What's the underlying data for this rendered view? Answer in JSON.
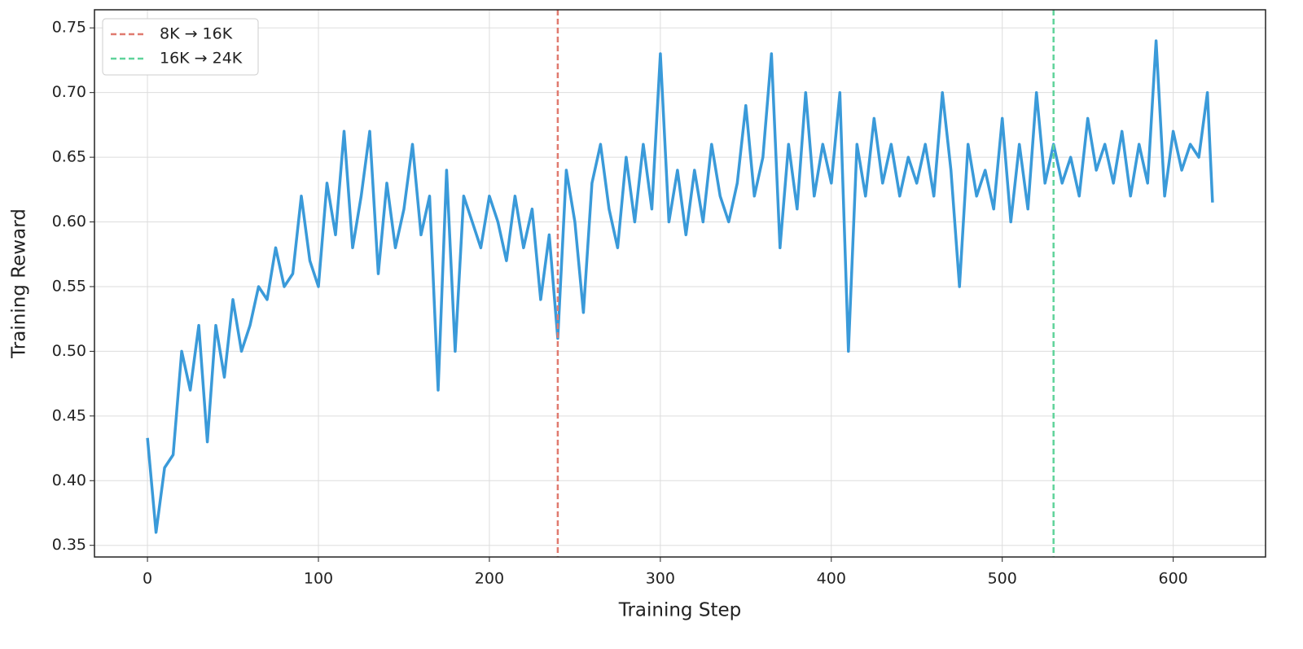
{
  "chart_data": {
    "type": "line",
    "xlabel": "Training Step",
    "ylabel": "Training Reward",
    "color": "#3a9ad9",
    "x": [
      0,
      5,
      10,
      15,
      20,
      25,
      30,
      35,
      40,
      45,
      50,
      55,
      60,
      65,
      70,
      75,
      80,
      85,
      90,
      95,
      100,
      105,
      110,
      115,
      120,
      125,
      130,
      135,
      140,
      145,
      150,
      155,
      160,
      165,
      170,
      175,
      180,
      185,
      190,
      195,
      200,
      205,
      210,
      215,
      220,
      225,
      230,
      235,
      240,
      245,
      250,
      255,
      260,
      265,
      270,
      275,
      280,
      285,
      290,
      295,
      300,
      305,
      310,
      315,
      320,
      325,
      330,
      335,
      340,
      345,
      350,
      355,
      360,
      365,
      370,
      375,
      380,
      385,
      390,
      395,
      400,
      405,
      410,
      415,
      420,
      425,
      430,
      435,
      440,
      445,
      450,
      455,
      460,
      465,
      470,
      475,
      480,
      485,
      490,
      495,
      500,
      505,
      510,
      515,
      520,
      525,
      530,
      535,
      540,
      545,
      550,
      555,
      560,
      565,
      570,
      575,
      580,
      585,
      590,
      595,
      600,
      605,
      610,
      615,
      620,
      623
    ],
    "values": [
      0.433,
      0.36,
      0.41,
      0.42,
      0.5,
      0.47,
      0.52,
      0.43,
      0.52,
      0.48,
      0.54,
      0.5,
      0.52,
      0.55,
      0.54,
      0.58,
      0.55,
      0.56,
      0.62,
      0.57,
      0.55,
      0.63,
      0.59,
      0.67,
      0.58,
      0.62,
      0.67,
      0.56,
      0.63,
      0.58,
      0.61,
      0.66,
      0.59,
      0.62,
      0.47,
      0.64,
      0.5,
      0.62,
      0.6,
      0.58,
      0.62,
      0.6,
      0.57,
      0.62,
      0.58,
      0.61,
      0.54,
      0.59,
      0.51,
      0.64,
      0.6,
      0.53,
      0.63,
      0.66,
      0.61,
      0.58,
      0.65,
      0.6,
      0.66,
      0.61,
      0.73,
      0.6,
      0.64,
      0.59,
      0.64,
      0.6,
      0.66,
      0.62,
      0.6,
      0.63,
      0.69,
      0.62,
      0.65,
      0.73,
      0.58,
      0.66,
      0.61,
      0.7,
      0.62,
      0.66,
      0.63,
      0.7,
      0.5,
      0.66,
      0.62,
      0.68,
      0.63,
      0.66,
      0.62,
      0.65,
      0.63,
      0.66,
      0.62,
      0.7,
      0.64,
      0.55,
      0.66,
      0.62,
      0.64,
      0.61,
      0.68,
      0.6,
      0.66,
      0.61,
      0.7,
      0.63,
      0.66,
      0.63,
      0.65,
      0.62,
      0.68,
      0.64,
      0.66,
      0.63,
      0.67,
      0.62,
      0.66,
      0.63,
      0.74,
      0.62,
      0.67,
      0.64,
      0.66,
      0.65,
      0.7,
      0.615
    ],
    "vlines": [
      {
        "x": 240,
        "label": "8K → 16K",
        "color": "#e07a6f"
      },
      {
        "x": 530,
        "label": "16K → 24K",
        "color": "#5fd39a"
      }
    ],
    "xlim": [
      -31,
      654
    ],
    "ylim": [
      0.341,
      0.764
    ],
    "xticks": [
      0,
      100,
      200,
      300,
      400,
      500,
      600
    ],
    "yticks": [
      0.35,
      {
        "value": 0.4,
        "label": "0.40"
      },
      0.45,
      {
        "value": 0.5,
        "label": "0.50"
      },
      0.55,
      {
        "value": 0.6,
        "label": "0.60"
      },
      0.65,
      {
        "value": 0.7,
        "label": "0.70"
      },
      0.75
    ],
    "grid": true,
    "legend": "upper left"
  }
}
